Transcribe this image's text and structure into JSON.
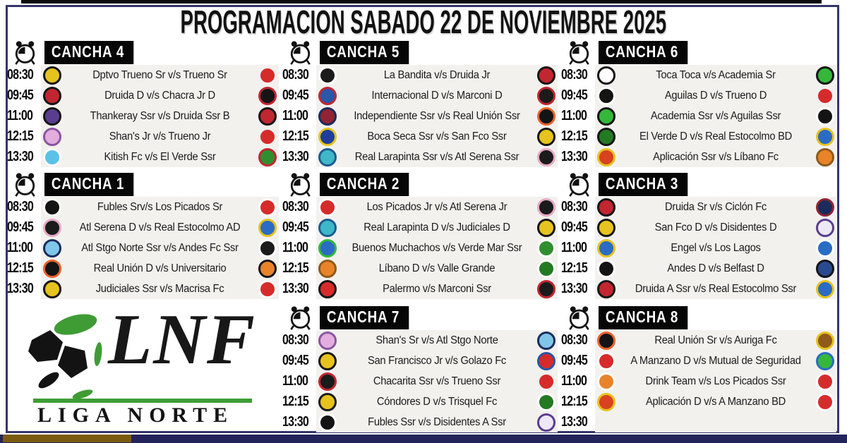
{
  "title": "PROGRAMACION SABADO 22 DE NOVIEMBRE 2025",
  "league": {
    "abbr": "LNF",
    "name": "LIGA NORTE"
  },
  "icons": {
    "header_clock": "alarm-clock",
    "league_mark": "soccer-ball"
  },
  "colors": {
    "frame_border": "#35356b",
    "top_strip": "#0a0a0a",
    "header_bg": "#060606",
    "panel_bg": "#f2f1ee",
    "footer_gold": "#7b5b0f",
    "footer_navy": "#23245a",
    "logo_green": "#3f9c35"
  },
  "canchas": [
    {
      "name": "CANCHA 4",
      "matches": [
        {
          "time": "08:30",
          "match": "Dptvo Trueno Sr v/s Trueno Sr",
          "home_badge": {
            "c1": "#e6c31e",
            "c2": "#151515"
          },
          "away_badge": {
            "c1": "#d62b2b",
            "c2": "#f0f0f0"
          }
        },
        {
          "time": "09:45",
          "match": "Druida D v/s Chacra Jr D",
          "home_badge": {
            "c1": "#c22630",
            "c2": "#151515"
          },
          "away_badge": {
            "c1": "#151515",
            "c2": "#c22630"
          }
        },
        {
          "time": "11:00",
          "match": "Thankeray Ssr v/s Druida Ssr B",
          "home_badge": {
            "c1": "#5a3d8f",
            "c2": "#151515"
          },
          "away_badge": {
            "c1": "#c22630",
            "c2": "#151515"
          }
        },
        {
          "time": "12:15",
          "match": "Shan's Jr v/s Trueno Jr",
          "home_badge": {
            "c1": "#e3aede",
            "c2": "#8a55a0"
          },
          "away_badge": {
            "c1": "#d62b2b",
            "c2": "#f0f0f0"
          }
        },
        {
          "time": "13:30",
          "match": "Kitish Fc v/s El Verde Ssr",
          "home_badge": {
            "c1": "#5bc1e8",
            "c2": "#ffffff"
          },
          "away_badge": {
            "c1": "#2f8f2f",
            "c2": "#c22630"
          }
        }
      ]
    },
    {
      "name": "CANCHA 5",
      "matches": [
        {
          "time": "08:30",
          "match": "La Bandita v/s Druida Jr",
          "home_badge": {
            "c1": "#1b1b1b",
            "c2": "#ffffff"
          },
          "away_badge": {
            "c1": "#c22630",
            "c2": "#151515"
          }
        },
        {
          "time": "09:45",
          "match": "Internacional D v/s Marconi D",
          "home_badge": {
            "c1": "#2a57a8",
            "c2": "#c22630"
          },
          "away_badge": {
            "c1": "#1b1b1b",
            "c2": "#c22630"
          }
        },
        {
          "time": "11:00",
          "match": "Independiente Ssr v/s Real Unión Ssr",
          "home_badge": {
            "c1": "#8f2433",
            "c2": "#1b2b5c"
          },
          "away_badge": {
            "c1": "#141414",
            "c2": "#e8632a"
          }
        },
        {
          "time": "12:15",
          "match": "Boca Seca Ssr v/s San Fco Ssr",
          "home_badge": {
            "c1": "#1f3f96",
            "c2": "#e6c31e"
          },
          "away_badge": {
            "c1": "#e6c31e",
            "c2": "#151515"
          }
        },
        {
          "time": "13:30",
          "match": "Real Larapinta Ssr v/s Atl Serena Ssr",
          "home_badge": {
            "c1": "#3fb7c9",
            "c2": "#1b5c8f"
          },
          "away_badge": {
            "c1": "#1b1b1b",
            "c2": "#e8a9c6"
          }
        }
      ]
    },
    {
      "name": "CANCHA 6",
      "matches": [
        {
          "time": "08:30",
          "match": "Toca Toca v/s Academia Sr",
          "home_badge": {
            "c1": "#ffffff",
            "c2": "#151515"
          },
          "away_badge": {
            "c1": "#35b83a",
            "c2": "#151515"
          }
        },
        {
          "time": "09:45",
          "match": "Aguilas D v/s Trueno D",
          "home_badge": {
            "c1": "#141414",
            "c2": "#ffffff"
          },
          "away_badge": {
            "c1": "#d62b2b",
            "c2": "#f0f0f0"
          }
        },
        {
          "time": "11:00",
          "match": "Academia Ssr v/s Aguilas Ssr",
          "home_badge": {
            "c1": "#35b83a",
            "c2": "#151515"
          },
          "away_badge": {
            "c1": "#141414",
            "c2": "#ffffff"
          }
        },
        {
          "time": "12:15",
          "match": "El Verde D v/s Real Estocolmo BD",
          "home_badge": {
            "c1": "#237a23",
            "c2": "#151515"
          },
          "away_badge": {
            "c1": "#2a6cc4",
            "c2": "#e6c31e"
          }
        },
        {
          "time": "13:30",
          "match": "Aplicación Ssr v/s Líbano Fc",
          "home_badge": {
            "c1": "#d84220",
            "c2": "#e6c31e"
          },
          "away_badge": {
            "c1": "#e8832a",
            "c2": "#8f5a1b"
          }
        }
      ]
    },
    {
      "name": "CANCHA 1",
      "matches": [
        {
          "time": "08:30",
          "match": "Fubles Srv/s Los Picados Sr",
          "home_badge": {
            "c1": "#141414",
            "c2": "#ffffff"
          },
          "away_badge": {
            "c1": "#d62b2b",
            "c2": "#ffffff"
          }
        },
        {
          "time": "09:45",
          "match": "Atl Serena D v/s Real Estocolmo AD",
          "home_badge": {
            "c1": "#1b1b1b",
            "c2": "#e8a9c6"
          },
          "away_badge": {
            "c1": "#2a6cc4",
            "c2": "#e6c31e"
          }
        },
        {
          "time": "11:00",
          "match": "Atl Stgo Norte Ssr v/s Andes Fc Ssr",
          "home_badge": {
            "c1": "#7fc6e8",
            "c2": "#1b2b5c"
          },
          "away_badge": {
            "c1": "#1b1b1b",
            "c2": "#ffffff"
          }
        },
        {
          "time": "12:15",
          "match": "Real Unión D v/s Universitario",
          "home_badge": {
            "c1": "#141414",
            "c2": "#e8632a"
          },
          "away_badge": {
            "c1": "#e8832a",
            "c2": "#151515"
          }
        },
        {
          "time": "13:30",
          "match": "Judiciales Ssr v/s Macrisa Fc",
          "home_badge": {
            "c1": "#e6c31e",
            "c2": "#151515"
          },
          "away_badge": {
            "c1": "#d62b2b",
            "c2": "#ffffff"
          }
        }
      ]
    },
    {
      "name": "CANCHA 2",
      "matches": [
        {
          "time": "08:30",
          "match": "Los Picados Jr v/s Atl Serena Jr",
          "home_badge": {
            "c1": "#d62b2b",
            "c2": "#ffffff"
          },
          "away_badge": {
            "c1": "#1b1b1b",
            "c2": "#e8a9c6"
          }
        },
        {
          "time": "09:45",
          "match": "Real Larapinta D v/s Judiciales D",
          "home_badge": {
            "c1": "#3fb7c9",
            "c2": "#1b5c8f"
          },
          "away_badge": {
            "c1": "#e6c31e",
            "c2": "#151515"
          }
        },
        {
          "time": "11:00",
          "match": "Buenos Muchachos v/s Verde Mar Ssr",
          "home_badge": {
            "c1": "#2a6cc4",
            "c2": "#35b83a"
          },
          "away_badge": {
            "c1": "#2f8f2f",
            "c2": "#ffffff"
          }
        },
        {
          "time": "12:15",
          "match": "Líbano D v/s Valle Grande",
          "home_badge": {
            "c1": "#e8832a",
            "c2": "#8f5a1b"
          },
          "away_badge": {
            "c1": "#237a23",
            "c2": "#ffffff"
          }
        },
        {
          "time": "13:30",
          "match": "Palermo v/s Marconi Ssr",
          "home_badge": {
            "c1": "#d62b2b",
            "c2": "#151515"
          },
          "away_badge": {
            "c1": "#1b1b1b",
            "c2": "#c22630"
          }
        }
      ]
    },
    {
      "name": "CANCHA 3",
      "matches": [
        {
          "time": "08:30",
          "match": "Druida Sr v/s Ciclón Fc",
          "home_badge": {
            "c1": "#c22630",
            "c2": "#151515"
          },
          "away_badge": {
            "c1": "#1b2b5c",
            "c2": "#8f2433"
          }
        },
        {
          "time": "09:45",
          "match": "San Fco D v/s Disidentes D",
          "home_badge": {
            "c1": "#e6c31e",
            "c2": "#151515"
          },
          "away_badge": {
            "c1": "#ece9f4",
            "c2": "#5a3d8f"
          }
        },
        {
          "time": "11:00",
          "match": "Engel v/s Los Lagos",
          "home_badge": {
            "c1": "#2a6cc4",
            "c2": "#e6c31e"
          },
          "away_badge": {
            "c1": "#2a6cc4",
            "c2": "#ffffff"
          }
        },
        {
          "time": "12:15",
          "match": "Andes D v/s Belfast D",
          "home_badge": {
            "c1": "#141414",
            "c2": "#ffffff"
          },
          "away_badge": {
            "c1": "#2a4a8f",
            "c2": "#151515"
          }
        },
        {
          "time": "13:30",
          "match": "Druida A Ssr v/s Real Estocolmo Ssr",
          "home_badge": {
            "c1": "#c22630",
            "c2": "#151515"
          },
          "away_badge": {
            "c1": "#2a6cc4",
            "c2": "#e6c31e"
          }
        }
      ]
    },
    {
      "name": "CANCHA 7",
      "matches": [
        {
          "time": "08:30",
          "match": "Shan's Sr v/s Atl Stgo Norte",
          "home_badge": {
            "c1": "#e3aede",
            "c2": "#8a55a0"
          },
          "away_badge": {
            "c1": "#7fc6e8",
            "c2": "#1b2b5c"
          }
        },
        {
          "time": "09:45",
          "match": "San Francisco Jr v/s Golazo Fc",
          "home_badge": {
            "c1": "#e6c31e",
            "c2": "#151515"
          },
          "away_badge": {
            "c1": "#d62b2b",
            "c2": "#2a57a8"
          }
        },
        {
          "time": "11:00",
          "match": "Chacarita Ssr v/s Trueno Ssr",
          "home_badge": {
            "c1": "#1b1b1b",
            "c2": "#c22630"
          },
          "away_badge": {
            "c1": "#d62b2b",
            "c2": "#f0f0f0"
          }
        },
        {
          "time": "12:15",
          "match": "Cóndores D v/s Trisquel Fc",
          "home_badge": {
            "c1": "#e6c31e",
            "c2": "#1b1b1b"
          },
          "away_badge": {
            "c1": "#237a23",
            "c2": "#ffffff"
          }
        },
        {
          "time": "13:30",
          "match": "Fubles Ssr v/s Disidentes A Ssr",
          "home_badge": {
            "c1": "#141414",
            "c2": "#ffffff"
          },
          "away_badge": {
            "c1": "#ece9f4",
            "c2": "#5a3d8f"
          }
        }
      ]
    },
    {
      "name": "CANCHA 8",
      "matches": [
        {
          "time": "08:30",
          "match": "Real Unión Sr v/s Auriga Fc",
          "home_badge": {
            "c1": "#141414",
            "c2": "#e8632a"
          },
          "away_badge": {
            "c1": "#8f5a1b",
            "c2": "#e6c31e"
          }
        },
        {
          "time": "09:45",
          "match": "A Manzano D v/s Mutual de Seguridad",
          "home_badge": {
            "c1": "#d62b2b",
            "c2": "#ffffff"
          },
          "away_badge": {
            "c1": "#35b83a",
            "c2": "#2a6cc4"
          }
        },
        {
          "time": "11:00",
          "match": "Drink Team v/s Los Picados Ssr",
          "home_badge": {
            "c1": "#e8832a",
            "c2": "#ffffff"
          },
          "away_badge": {
            "c1": "#d62b2b",
            "c2": "#ffffff"
          }
        },
        {
          "time": "12:15",
          "match": "Aplicación D v/s A Manzano BD",
          "home_badge": {
            "c1": "#d84220",
            "c2": "#e6c31e"
          },
          "away_badge": {
            "c1": "#d62b2b",
            "c2": "#ffffff"
          }
        },
        {
          "time": "13:30",
          "match": "",
          "home_badge": null,
          "away_badge": null
        }
      ]
    }
  ]
}
